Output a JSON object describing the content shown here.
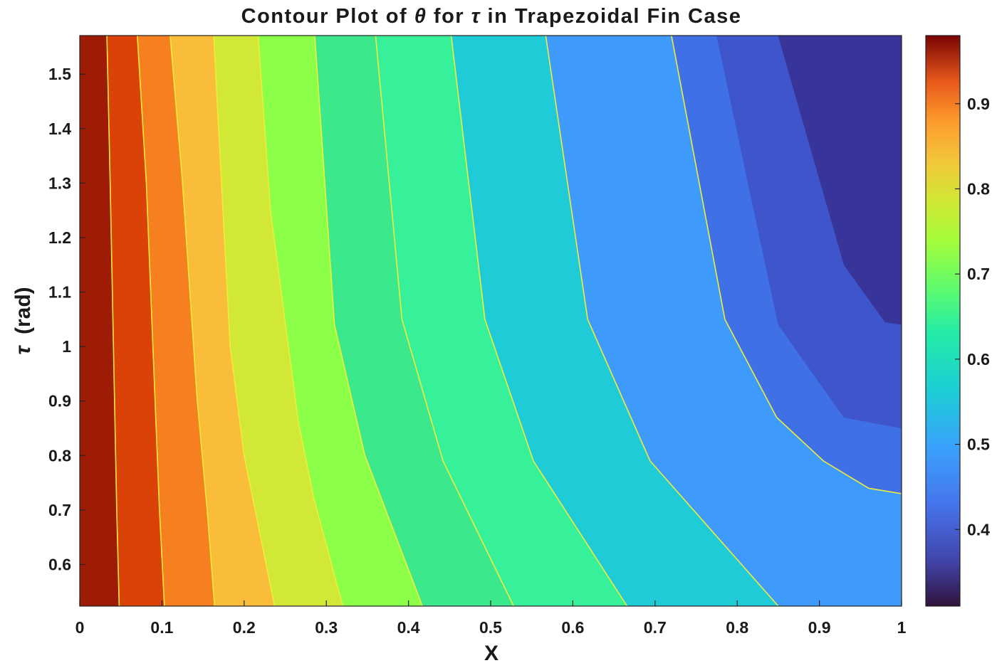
{
  "chart_data": {
    "type": "contour",
    "title": {
      "parts": [
        {
          "text": "Contour Plot of ",
          "italic": false
        },
        {
          "text": "θ",
          "italic": true
        },
        {
          "text": " for ",
          "italic": false
        },
        {
          "text": "τ",
          "italic": true
        },
        {
          "text": " in Trapezoidal Fin Case",
          "italic": false
        }
      ]
    },
    "xlabel": "X",
    "ylabel": {
      "symbol": "τ",
      "unit": "(rad)"
    },
    "xlim": [
      0,
      1
    ],
    "ylim": [
      0.5236,
      1.5708
    ],
    "xticks": [
      0,
      0.1,
      0.2,
      0.3,
      0.4,
      0.5,
      0.6,
      0.7,
      0.8,
      0.9,
      1
    ],
    "xtick_labels": [
      "0",
      "0.1",
      "0.2",
      "0.3",
      "0.4",
      "0.5",
      "0.6",
      "0.7",
      "0.8",
      "0.9",
      "1"
    ],
    "yticks": [
      0.6,
      0.7,
      0.8,
      0.9,
      1.0,
      1.1,
      1.2,
      1.3,
      1.4,
      1.5
    ],
    "ytick_labels": [
      "0.6",
      "0.7",
      "0.8",
      "0.9",
      "1",
      "1.1",
      "1.2",
      "1.3",
      "1.4",
      "1.5"
    ],
    "colorbar": {
      "range": [
        0.31,
        0.98
      ],
      "ticks": [
        0.4,
        0.5,
        0.6,
        0.7,
        0.8,
        0.9
      ],
      "tick_labels": [
        "0.4",
        "0.5",
        "0.6",
        "0.7",
        "0.8",
        "0.9"
      ],
      "colormap": "turbo"
    },
    "contour_line_color": "#f0ec3c",
    "levels": [
      0.95,
      0.9,
      0.85,
      0.8,
      0.75,
      0.7,
      0.65,
      0.6,
      0.55,
      0.5,
      0.45,
      0.4,
      0.35,
      0.33
    ],
    "contours": [
      {
        "level": 0.95,
        "points": [
          [
            0.048,
            0.5236
          ],
          [
            0.045,
            0.7
          ],
          [
            0.041,
            1.0
          ],
          [
            0.037,
            1.3
          ],
          [
            0.033,
            1.5708
          ]
        ]
      },
      {
        "level": 0.9,
        "points": [
          [
            0.103,
            0.5236
          ],
          [
            0.097,
            0.7
          ],
          [
            0.089,
            1.0
          ],
          [
            0.081,
            1.3
          ],
          [
            0.07,
            1.5708
          ]
        ]
      },
      {
        "level": 0.85,
        "points": [
          [
            0.164,
            0.5236
          ],
          [
            0.155,
            0.7
          ],
          [
            0.143,
            0.9
          ],
          [
            0.125,
            1.3
          ],
          [
            0.11,
            1.5708
          ]
        ]
      },
      {
        "level": 0.8,
        "points": [
          [
            0.237,
            0.5236
          ],
          [
            0.2,
            0.8
          ],
          [
            0.183,
            1.0
          ],
          [
            0.163,
            1.5708
          ]
        ]
      },
      {
        "level": 0.75,
        "points": [
          [
            0.32,
            0.5236
          ],
          [
            0.285,
            0.72
          ],
          [
            0.266,
            0.86
          ],
          [
            0.232,
            1.25
          ],
          [
            0.217,
            1.5708
          ]
        ]
      },
      {
        "level": 0.7,
        "points": [
          [
            0.417,
            0.5236
          ],
          [
            0.347,
            0.8
          ],
          [
            0.31,
            1.04
          ],
          [
            0.286,
            1.5708
          ]
        ]
      },
      {
        "level": 0.65,
        "points": [
          [
            0.528,
            0.5236
          ],
          [
            0.442,
            0.79
          ],
          [
            0.392,
            1.05
          ],
          [
            0.36,
            1.5708
          ]
        ]
      },
      {
        "level": 0.6,
        "points": [
          [
            0.666,
            0.5236
          ],
          [
            0.552,
            0.79
          ],
          [
            0.493,
            1.05
          ],
          [
            0.452,
            1.5708
          ]
        ]
      },
      {
        "level": 0.55,
        "points": [
          [
            0.85,
            0.5236
          ],
          [
            0.694,
            0.79
          ],
          [
            0.618,
            1.05
          ],
          [
            0.567,
            1.5708
          ]
        ]
      },
      {
        "level": 0.5,
        "points": [
          [
            1.0,
            0.73
          ],
          [
            0.96,
            0.74
          ],
          [
            0.905,
            0.79
          ],
          [
            0.848,
            0.87
          ],
          [
            0.785,
            1.05
          ],
          [
            0.72,
            1.5708
          ]
        ]
      },
      {
        "level": 0.45,
        "points": [
          [
            1.0,
            0.85
          ],
          [
            0.93,
            0.87
          ],
          [
            0.85,
            1.04
          ],
          [
            0.775,
            1.5708
          ]
        ]
      },
      {
        "level": 0.4,
        "points": [
          [
            1.0,
            1.04
          ],
          [
            0.98,
            1.045
          ],
          [
            0.93,
            1.15
          ],
          [
            0.85,
            1.5708
          ]
        ]
      }
    ],
    "fill_colors": [
      "#9e1b05",
      "#da4208",
      "#f67f20",
      "#f9bd3a",
      "#d2e836",
      "#8cff48",
      "#3be98c",
      "#37f09a",
      "#1fcbd6",
      "#3f9bfb",
      "#4070e6",
      "#3f55cc",
      "#38359a",
      "#2e1a45"
    ]
  }
}
